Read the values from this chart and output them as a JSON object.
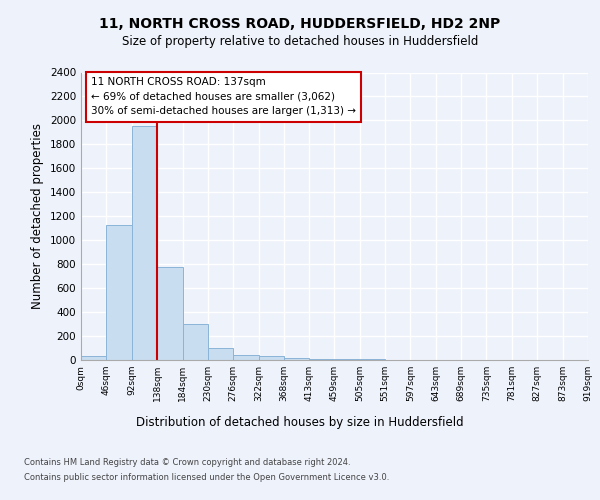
{
  "title1": "11, NORTH CROSS ROAD, HUDDERSFIELD, HD2 2NP",
  "title2": "Size of property relative to detached houses in Huddersfield",
  "xlabel": "Distribution of detached houses by size in Huddersfield",
  "ylabel": "Number of detached properties",
  "bin_edges": [
    0,
    46,
    92,
    138,
    184,
    230,
    276,
    322,
    368,
    413,
    459,
    505,
    551,
    597,
    643,
    689,
    735,
    781,
    827,
    873,
    919
  ],
  "bar_heights": [
    35,
    1130,
    1950,
    775,
    300,
    100,
    45,
    30,
    15,
    10,
    8,
    5,
    3,
    2,
    2,
    1,
    1,
    1,
    1,
    1
  ],
  "bar_color": "#c9ddf0",
  "bar_edge_color": "#8ab4d8",
  "property_size": 137,
  "vline_color": "#cc0000",
  "annotation_text": "11 NORTH CROSS ROAD: 137sqm\n← 69% of detached houses are smaller (3,062)\n30% of semi-detached houses are larger (1,313) →",
  "annotation_box_color": "#ffffff",
  "annotation_box_edge": "#cc0000",
  "ylim": [
    0,
    2400
  ],
  "yticks": [
    0,
    200,
    400,
    600,
    800,
    1000,
    1200,
    1400,
    1600,
    1800,
    2000,
    2200,
    2400
  ],
  "footer1": "Contains HM Land Registry data © Crown copyright and database right 2024.",
  "footer2": "Contains public sector information licensed under the Open Government Licence v3.0.",
  "bg_color": "#eef2fb",
  "plot_bg_color": "#eef2fb",
  "grid_color": "#ffffff",
  "spine_color": "#aaaaaa"
}
